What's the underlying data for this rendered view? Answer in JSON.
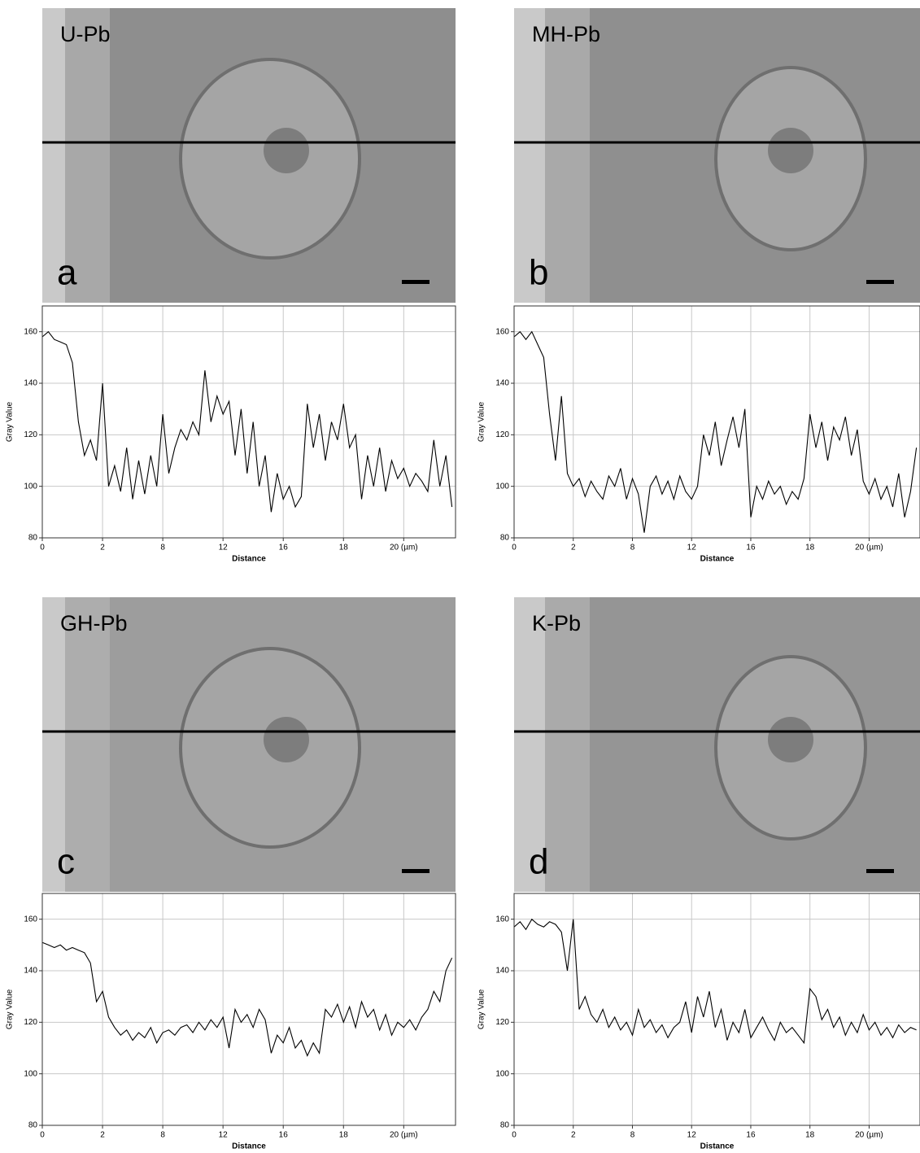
{
  "chart_data": [
    {
      "type": "line",
      "title": "U-Pb",
      "panel": "a",
      "xlabel": "Distance",
      "ylabel": "Gray Value",
      "color": "#000000",
      "grid": true,
      "xlim": [
        0,
        6.86
      ],
      "xticks": [
        {
          "value": 0,
          "label": "0"
        },
        {
          "value": 1,
          "label": "2"
        },
        {
          "value": 2,
          "label": "8"
        },
        {
          "value": 3,
          "label": "12"
        },
        {
          "value": 4,
          "label": "16"
        },
        {
          "value": 5,
          "label": "18"
        },
        {
          "value": 6,
          "label": "20 (µm)"
        }
      ],
      "ylim": [
        80,
        170
      ],
      "yticks": [
        80,
        100,
        120,
        140,
        160
      ],
      "x": [
        0,
        0.1,
        0.2,
        0.3,
        0.4,
        0.5,
        0.6,
        0.7,
        0.8,
        0.9,
        1,
        1.1,
        1.2,
        1.3,
        1.4,
        1.5,
        1.6,
        1.7,
        1.8,
        1.9,
        2,
        2.1,
        2.2,
        2.3,
        2.4,
        2.5,
        2.6,
        2.7,
        2.8,
        2.9,
        3,
        3.1,
        3.2,
        3.3,
        3.4,
        3.5,
        3.6,
        3.7,
        3.8,
        3.9,
        4,
        4.1,
        4.2,
        4.3,
        4.4,
        4.5,
        4.6,
        4.7,
        4.8,
        4.9,
        5,
        5.1,
        5.2,
        5.3,
        5.4,
        5.5,
        5.6,
        5.7,
        5.8,
        5.9,
        6,
        6.1,
        6.2,
        6.3,
        6.4,
        6.5,
        6.6,
        6.7,
        6.8
      ],
      "values": [
        158,
        160,
        157,
        156,
        155,
        148,
        125,
        112,
        118,
        110,
        140,
        100,
        108,
        98,
        115,
        95,
        110,
        97,
        112,
        100,
        128,
        105,
        115,
        122,
        118,
        125,
        120,
        145,
        125,
        135,
        128,
        133,
        112,
        130,
        105,
        125,
        100,
        112,
        90,
        105,
        95,
        100,
        92,
        96,
        132,
        115,
        128,
        110,
        125,
        118,
        132,
        115,
        120,
        95,
        112,
        100,
        115,
        98,
        110,
        103,
        107,
        100,
        105,
        102,
        98,
        118,
        100,
        112,
        92
      ]
    },
    {
      "type": "line",
      "title": "MH-Pb",
      "panel": "b",
      "xlabel": "Distance",
      "ylabel": "Gray Value",
      "color": "#000000",
      "grid": true,
      "xlim": [
        0,
        6.86
      ],
      "xticks": [
        {
          "value": 0,
          "label": "0"
        },
        {
          "value": 1,
          "label": "2"
        },
        {
          "value": 2,
          "label": "8"
        },
        {
          "value": 3,
          "label": "12"
        },
        {
          "value": 4,
          "label": "16"
        },
        {
          "value": 5,
          "label": "18"
        },
        {
          "value": 6,
          "label": "20 (µm)"
        }
      ],
      "ylim": [
        80,
        170
      ],
      "yticks": [
        80,
        100,
        120,
        140,
        160
      ],
      "x": [
        0,
        0.1,
        0.2,
        0.3,
        0.4,
        0.5,
        0.6,
        0.7,
        0.8,
        0.9,
        1,
        1.1,
        1.2,
        1.3,
        1.4,
        1.5,
        1.6,
        1.7,
        1.8,
        1.9,
        2,
        2.1,
        2.2,
        2.3,
        2.4,
        2.5,
        2.6,
        2.7,
        2.8,
        2.9,
        3,
        3.1,
        3.2,
        3.3,
        3.4,
        3.5,
        3.6,
        3.7,
        3.8,
        3.9,
        4,
        4.1,
        4.2,
        4.3,
        4.4,
        4.5,
        4.6,
        4.7,
        4.8,
        4.9,
        5,
        5.1,
        5.2,
        5.3,
        5.4,
        5.5,
        5.6,
        5.7,
        5.8,
        5.9,
        6,
        6.1,
        6.2,
        6.3,
        6.4,
        6.5,
        6.6,
        6.7,
        6.8
      ],
      "values": [
        158,
        160,
        157,
        160,
        155,
        150,
        128,
        110,
        135,
        105,
        100,
        103,
        96,
        102,
        98,
        95,
        104,
        100,
        107,
        95,
        103,
        97,
        82,
        100,
        104,
        97,
        102,
        95,
        104,
        98,
        95,
        100,
        120,
        112,
        125,
        108,
        118,
        127,
        115,
        130,
        88,
        100,
        95,
        102,
        97,
        100,
        93,
        98,
        95,
        103,
        128,
        115,
        125,
        110,
        123,
        118,
        127,
        112,
        122,
        102,
        97,
        103,
        95,
        100,
        92,
        105,
        88,
        98,
        115
      ]
    },
    {
      "type": "line",
      "title": "GH-Pb",
      "panel": "c",
      "xlabel": "Distance",
      "ylabel": "Gray Value",
      "color": "#000000",
      "grid": true,
      "xlim": [
        0,
        6.86
      ],
      "xticks": [
        {
          "value": 0,
          "label": "0"
        },
        {
          "value": 1,
          "label": "2"
        },
        {
          "value": 2,
          "label": "8"
        },
        {
          "value": 3,
          "label": "12"
        },
        {
          "value": 4,
          "label": "16"
        },
        {
          "value": 5,
          "label": "18"
        },
        {
          "value": 6,
          "label": "20 (µm)"
        }
      ],
      "ylim": [
        80,
        170
      ],
      "yticks": [
        80,
        100,
        120,
        140,
        160
      ],
      "x": [
        0,
        0.1,
        0.2,
        0.3,
        0.4,
        0.5,
        0.6,
        0.7,
        0.8,
        0.9,
        1,
        1.1,
        1.2,
        1.3,
        1.4,
        1.5,
        1.6,
        1.7,
        1.8,
        1.9,
        2,
        2.1,
        2.2,
        2.3,
        2.4,
        2.5,
        2.6,
        2.7,
        2.8,
        2.9,
        3,
        3.1,
        3.2,
        3.3,
        3.4,
        3.5,
        3.6,
        3.7,
        3.8,
        3.9,
        4,
        4.1,
        4.2,
        4.3,
        4.4,
        4.5,
        4.6,
        4.7,
        4.8,
        4.9,
        5,
        5.1,
        5.2,
        5.3,
        5.4,
        5.5,
        5.6,
        5.7,
        5.8,
        5.9,
        6,
        6.1,
        6.2,
        6.3,
        6.4,
        6.5,
        6.6,
        6.7,
        6.8
      ],
      "values": [
        151,
        150,
        149,
        150,
        148,
        149,
        148,
        147,
        143,
        128,
        132,
        122,
        118,
        115,
        117,
        113,
        116,
        114,
        118,
        112,
        116,
        117,
        115,
        118,
        119,
        116,
        120,
        117,
        121,
        118,
        122,
        110,
        125,
        120,
        123,
        118,
        125,
        121,
        108,
        115,
        112,
        118,
        110,
        113,
        107,
        112,
        108,
        125,
        122,
        127,
        120,
        126,
        118,
        128,
        122,
        125,
        117,
        123,
        115,
        120,
        118,
        121,
        117,
        122,
        125,
        132,
        128,
        140,
        145
      ]
    },
    {
      "type": "line",
      "title": "K-Pb",
      "panel": "d",
      "xlabel": "Distance",
      "ylabel": "Gray Value",
      "color": "#000000",
      "grid": true,
      "xlim": [
        0,
        6.86
      ],
      "xticks": [
        {
          "value": 0,
          "label": "0"
        },
        {
          "value": 1,
          "label": "2"
        },
        {
          "value": 2,
          "label": "8"
        },
        {
          "value": 3,
          "label": "12"
        },
        {
          "value": 4,
          "label": "16"
        },
        {
          "value": 5,
          "label": "18"
        },
        {
          "value": 6,
          "label": "20 (µm)"
        }
      ],
      "ylim": [
        80,
        170
      ],
      "yticks": [
        80,
        100,
        120,
        140,
        160
      ],
      "x": [
        0,
        0.1,
        0.2,
        0.3,
        0.4,
        0.5,
        0.6,
        0.7,
        0.8,
        0.9,
        1,
        1.1,
        1.2,
        1.3,
        1.4,
        1.5,
        1.6,
        1.7,
        1.8,
        1.9,
        2,
        2.1,
        2.2,
        2.3,
        2.4,
        2.5,
        2.6,
        2.7,
        2.8,
        2.9,
        3,
        3.1,
        3.2,
        3.3,
        3.4,
        3.5,
        3.6,
        3.7,
        3.8,
        3.9,
        4,
        4.1,
        4.2,
        4.3,
        4.4,
        4.5,
        4.6,
        4.7,
        4.8,
        4.9,
        5,
        5.1,
        5.2,
        5.3,
        5.4,
        5.5,
        5.6,
        5.7,
        5.8,
        5.9,
        6,
        6.1,
        6.2,
        6.3,
        6.4,
        6.5,
        6.6,
        6.7,
        6.8
      ],
      "values": [
        157,
        159,
        156,
        160,
        158,
        157,
        159,
        158,
        155,
        140,
        160,
        125,
        130,
        123,
        120,
        125,
        118,
        122,
        117,
        120,
        115,
        125,
        118,
        121,
        116,
        119,
        114,
        118,
        120,
        128,
        116,
        130,
        122,
        132,
        118,
        125,
        113,
        120,
        116,
        125,
        114,
        118,
        122,
        117,
        113,
        120,
        116,
        118,
        115,
        112,
        133,
        130,
        121,
        125,
        118,
        122,
        115,
        120,
        116,
        123,
        117,
        120,
        115,
        118,
        114,
        119,
        116,
        118,
        117
      ]
    }
  ]
}
